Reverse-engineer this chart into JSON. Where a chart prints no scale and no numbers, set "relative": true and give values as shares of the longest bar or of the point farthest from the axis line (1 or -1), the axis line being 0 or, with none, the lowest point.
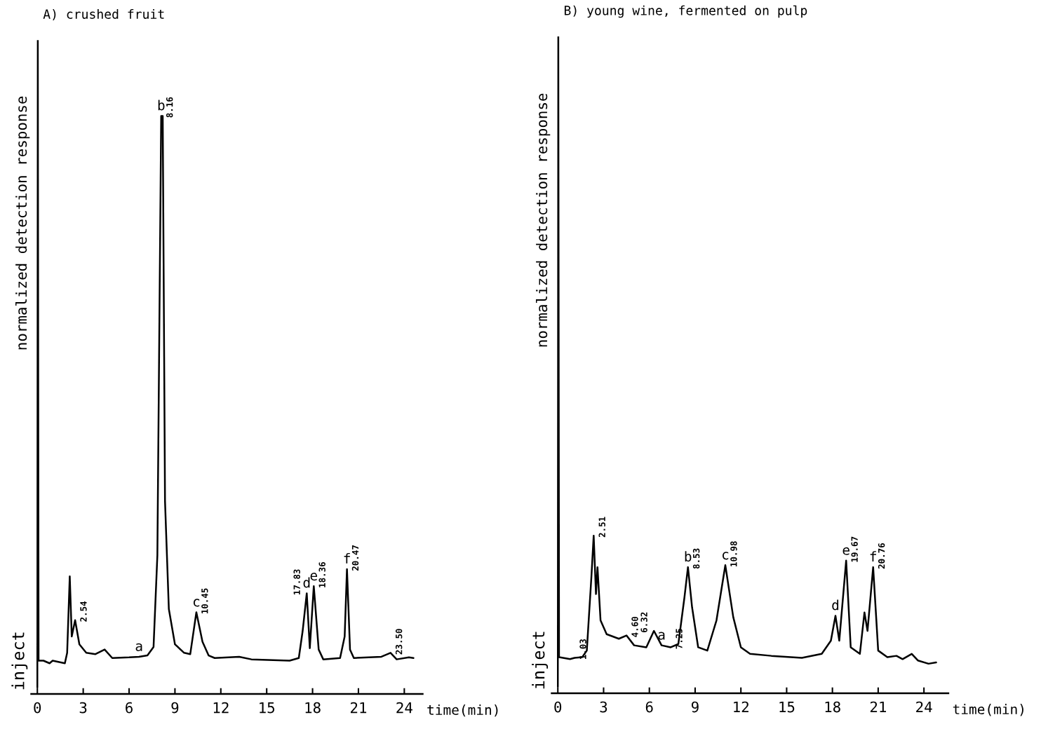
{
  "chart_data": [
    {
      "type": "line",
      "title": "A) crushed fruit",
      "ylabel": "normalized detection response",
      "xlabel": "time(min)",
      "relative": true,
      "xlim": [
        -0.4,
        25.2
      ],
      "xticks": [
        0,
        3,
        6,
        9,
        12,
        15,
        18,
        21,
        24
      ],
      "grid": false,
      "legend": false,
      "marker": "none",
      "line_style": "solid",
      "series": [
        {
          "color": "#000000",
          "x": [
            0.0,
            0.03,
            0.08,
            0.4,
            0.8,
            1.0,
            1.8,
            1.95,
            2.12,
            2.25,
            2.47,
            2.75,
            3.2,
            3.8,
            4.4,
            4.9,
            6.0,
            6.65,
            7.2,
            7.6,
            7.85,
            8.1,
            8.2,
            8.35,
            8.6,
            9.0,
            9.6,
            10.0,
            10.4,
            10.8,
            11.2,
            11.6,
            13.2,
            14.0,
            16.5,
            17.1,
            17.35,
            17.62,
            17.82,
            18.08,
            18.4,
            18.7,
            19.8,
            20.1,
            20.25,
            20.45,
            20.7,
            22.5,
            23.1,
            23.5,
            24.3,
            24.6
          ],
          "values": [
            0.01,
            1.0,
            0.051,
            0.051,
            0.047,
            0.051,
            0.047,
            0.063,
            0.18,
            0.088,
            0.113,
            0.076,
            0.063,
            0.061,
            0.068,
            0.055,
            0.056,
            0.057,
            0.059,
            0.072,
            0.212,
            0.884,
            0.884,
            0.295,
            0.13,
            0.076,
            0.063,
            0.061,
            0.125,
            0.08,
            0.059,
            0.055,
            0.057,
            0.053,
            0.051,
            0.055,
            0.096,
            0.154,
            0.07,
            0.165,
            0.068,
            0.053,
            0.055,
            0.088,
            0.191,
            0.068,
            0.055,
            0.057,
            0.063,
            0.053,
            0.056,
            0.055
          ]
        }
      ],
      "annotations": [
        "inject",
        {
          "text": "a",
          "x": 6.65,
          "y": 0.057
        },
        {
          "text": "b",
          "x": 8.1,
          "y": 0.884
        },
        {
          "text": "c",
          "x": 10.4,
          "y": 0.125
        },
        {
          "text": "d",
          "x": 17.62,
          "y": 0.154
        },
        {
          "text": "e",
          "x": 18.08,
          "y": 0.165
        },
        {
          "text": "f",
          "x": 20.25,
          "y": 0.191
        },
        {
          "text": "2.54",
          "x": 2.47,
          "y": 0.113
        },
        {
          "text": "8.16",
          "x": 8.1,
          "y": 0.884
        },
        {
          "text": "10.45",
          "x": 10.4,
          "y": 0.125
        },
        {
          "text": "17.83",
          "x": 17.62,
          "y": 0.154
        },
        {
          "text": "18.36",
          "x": 18.08,
          "y": 0.165
        },
        {
          "text": "20.47",
          "x": 20.25,
          "y": 0.191
        },
        {
          "text": "23.50",
          "x": 23.1,
          "y": 0.063
        }
      ]
    },
    {
      "type": "line",
      "title": "B) young wine, fermented on pulp",
      "ylabel": "normalized detection response",
      "xlabel": "time(min)",
      "relative": true,
      "xlim": [
        -0.4,
        25.6
      ],
      "xticks": [
        0,
        3,
        6,
        9,
        12,
        15,
        18,
        21,
        24
      ],
      "grid": false,
      "legend": false,
      "marker": "none",
      "line_style": "solid",
      "series": [
        {
          "color": "#000000",
          "x": [
            0.0,
            0.03,
            0.08,
            0.8,
            1.1,
            1.6,
            1.9,
            2.2,
            2.35,
            2.5,
            2.6,
            2.8,
            3.2,
            4.0,
            4.5,
            5.0,
            5.8,
            6.3,
            6.8,
            7.4,
            7.9,
            8.3,
            8.53,
            8.8,
            9.2,
            9.8,
            10.4,
            10.98,
            11.5,
            12.0,
            12.6,
            14.0,
            16.0,
            17.3,
            17.9,
            18.2,
            18.45,
            18.9,
            19.2,
            19.8,
            20.1,
            20.3,
            20.67,
            21.0,
            21.6,
            22.2,
            22.6,
            23.2,
            23.6,
            24.3,
            24.8
          ],
          "values": [
            0.01,
            1.0,
            0.055,
            0.052,
            0.054,
            0.055,
            0.065,
            0.177,
            0.24,
            0.151,
            0.192,
            0.111,
            0.09,
            0.083,
            0.088,
            0.073,
            0.07,
            0.095,
            0.073,
            0.07,
            0.075,
            0.146,
            0.192,
            0.131,
            0.07,
            0.065,
            0.111,
            0.195,
            0.116,
            0.07,
            0.06,
            0.057,
            0.054,
            0.06,
            0.08,
            0.118,
            0.08,
            0.202,
            0.07,
            0.06,
            0.123,
            0.095,
            0.192,
            0.065,
            0.055,
            0.057,
            0.052,
            0.06,
            0.05,
            0.045,
            0.047
          ]
        }
      ],
      "annotations": [
        "inject",
        {
          "text": "a",
          "x": 6.8,
          "y": 0.073
        },
        {
          "text": "b",
          "x": 8.53,
          "y": 0.192
        },
        {
          "text": "c",
          "x": 10.98,
          "y": 0.195
        },
        {
          "text": "d",
          "x": 18.2,
          "y": 0.118
        },
        {
          "text": "e",
          "x": 18.9,
          "y": 0.202
        },
        {
          "text": "f",
          "x": 20.67,
          "y": 0.192
        },
        {
          "text": "1.03",
          "x": 1.1,
          "y": 0.054
        },
        {
          "text": "2.51",
          "x": 2.35,
          "y": 0.24
        },
        {
          "text": "4.60",
          "x": 4.5,
          "y": 0.088
        },
        {
          "text": "6.32",
          "x": 6.3,
          "y": 0.095
        },
        {
          "text": "7.25",
          "x": 7.4,
          "y": 0.07
        },
        {
          "text": "8.53",
          "x": 8.53,
          "y": 0.192
        },
        {
          "text": "10.98",
          "x": 10.98,
          "y": 0.195
        },
        {
          "text": "19.67",
          "x": 18.9,
          "y": 0.202
        },
        {
          "text": "20.76",
          "x": 20.67,
          "y": 0.192
        }
      ]
    }
  ]
}
